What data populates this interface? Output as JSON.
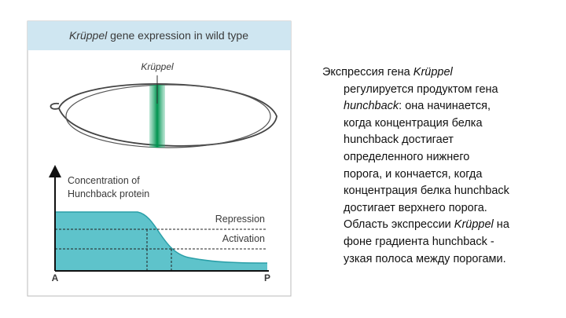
{
  "figure": {
    "title": [
      {
        "text": "Krüppel",
        "italic": true
      },
      {
        "text": " gene expression in wild type"
      }
    ],
    "gene_label": "Krüppel",
    "y_axis_label": [
      "Concentration of",
      "Hunchback protein"
    ],
    "thresholds": [
      "Repression",
      "Activation"
    ],
    "axis_start": "A",
    "axis_end": "P"
  },
  "paragraph": {
    "lines": [
      [
        {
          "text": "Экспрессия гена "
        },
        {
          "text": "Krüppel",
          "italic": true
        }
      ],
      [
        {
          "text": "регулируется продуктом гена"
        }
      ],
      [
        {
          "text": "hunchback",
          "italic": true
        },
        {
          "text": ": она начинается,"
        }
      ],
      [
        {
          "text": "когда концентрация белка"
        }
      ],
      [
        {
          "text": "hunchback достигает"
        }
      ],
      [
        {
          "text": "определенного нижнего"
        }
      ],
      [
        {
          "text": "порога, и кончается, когда"
        }
      ],
      [
        {
          "text": "концентрация белка hunchback"
        }
      ],
      [
        {
          "text": "достигает верхнего порога."
        }
      ],
      [
        {
          "text": "Область экспрессии "
        },
        {
          "text": "Krüppel",
          "italic": true
        },
        {
          "text": " на"
        }
      ],
      [
        {
          "text": "фоне градиента hunchback -"
        }
      ],
      [
        {
          "text": "узкая полоса между порогами."
        }
      ]
    ]
  }
}
